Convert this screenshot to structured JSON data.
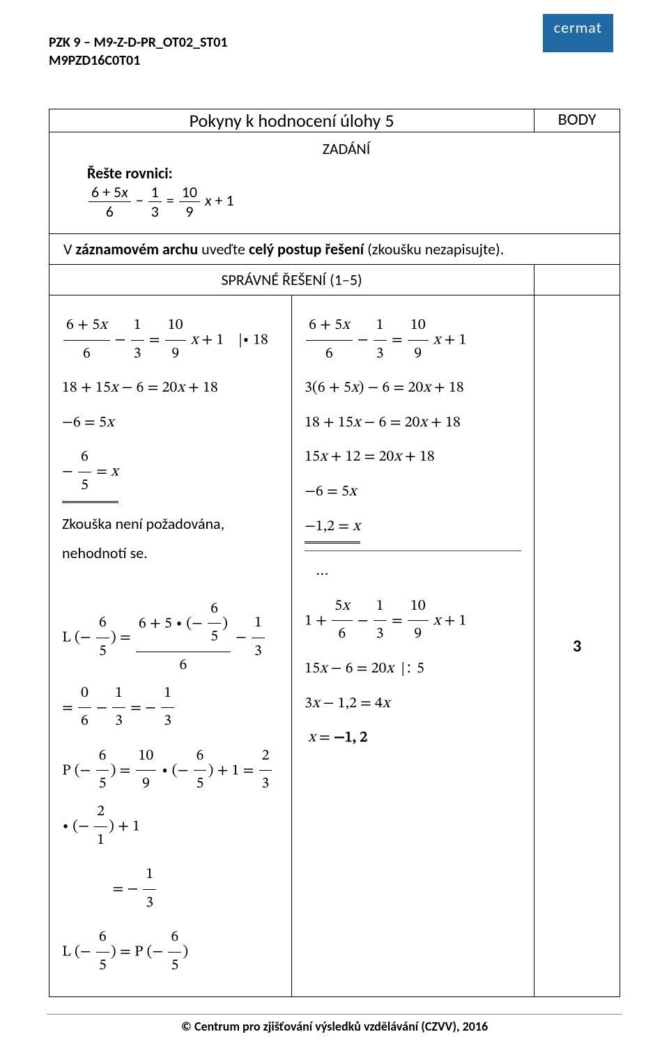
{
  "brand": "cermat",
  "header": {
    "line1": "PZK 9 – M9-Z-D-PR_OT02_ST01",
    "line2": "M9PZD16C0T01"
  },
  "table": {
    "title": "Pokyny k hodnocení úlohy 5",
    "body_label": "BODY",
    "zadani_label": "ZADÁNÍ",
    "reste_label": "Řešte rovnici:",
    "equation_html": "<span class='frac'><span class='num'>6 + 5<span class='math-it'>x</span></span><span class='den'>6</span></span> − <span class='frac'><span class='num'>1</span><span class='den'>3</span></span> = <span class='frac'><span class='num'>10</span><span class='den'>9</span></span> <span class='math-it'>x</span> + 1",
    "note": "V <b>záznamovém archu</b> uveďte <b>celý postup řešení</b> (zkoušku nezapisujte).",
    "spravne_label": "SPRÁVNÉ ŘEŠENÍ (1–5)",
    "points": "3",
    "left_col": [
      "<span class='frac'><span class='num'>6 + 5<span class='math-it'>x</span></span><span class='den'>6</span></span> − <span class='frac'><span class='num'>1</span><span class='den'>3</span></span> = <span class='frac'><span class='num'>10</span><span class='den'>9</span></span> <span class='math-it'>x</span> + 1&nbsp;&nbsp;&nbsp;&nbsp;|∙ 18",
      "18 + 15<span class='math-it'>x</span> − 6 = 20<span class='math-it'>x</span> + 18",
      "−6 = 5<span class='math-it'>x</span>",
      "<span class='dunder'>− <span class='frac'><span class='num'>6</span><span class='den'>5</span></span> = <span class='math-it'>x</span></span>",
      "<span class='zk-note'>Zkouška není požadována, nehodnotí se.</span>",
      "L (− <span class='frac'><span class='num'>6</span><span class='den'>5</span></span>) = <span class='frac'><span class='num'>6 + 5 ∙ (− <span class='frac'><span class='num'>6</span><span class='den'>5</span></span>)</span><span class='den'>6</span></span> − <span class='frac'><span class='num'>1</span><span class='den'>3</span></span> = <span class='frac'><span class='num'>0</span><span class='den'>6</span></span> − <span class='frac'><span class='num'>1</span><span class='den'>3</span></span> = − <span class='frac'><span class='num'>1</span><span class='den'>3</span></span>",
      "P (− <span class='frac'><span class='num'>6</span><span class='den'>5</span></span>) = <span class='frac'><span class='num'>10</span><span class='den'>9</span></span> ∙ (− <span class='frac'><span class='num'>6</span><span class='den'>5</span></span>) + 1 = <span class='frac'><span class='num'>2</span><span class='den'>3</span></span> ∙ (− <span class='frac'><span class='num'>2</span><span class='den'>1</span></span>) + 1",
      "&nbsp;&nbsp;&nbsp;&nbsp;&nbsp;&nbsp;&nbsp;&nbsp;&nbsp;&nbsp;&nbsp;&nbsp;&nbsp;&nbsp;= − <span class='frac'><span class='num'>1</span><span class='den'>3</span></span>",
      "L (− <span class='frac'><span class='num'>6</span><span class='den'>5</span></span>) = P (− <span class='frac'><span class='num'>6</span><span class='den'>5</span></span>)"
    ],
    "right_top": [
      "<span class='frac'><span class='num'>6 + 5<span class='math-it'>x</span></span><span class='den'>6</span></span> − <span class='frac'><span class='num'>1</span><span class='den'>3</span></span> = <span class='frac'><span class='num'>10</span><span class='den'>9</span></span> <span class='math-it'>x</span> + 1",
      "3(6 + 5<span class='math-it'>x</span>) − 6 = 20<span class='math-it'>x</span> + 18",
      "18 + 15<span class='math-it'>x</span> − 6 = 20<span class='math-it'>x</span> + 18",
      "15<span class='math-it'>x</span> + 12 = 20<span class='math-it'>x</span> + 18",
      "−6 = 5<span class='math-it'>x</span>",
      "<span class='dunder'>−1,2 = <span class='math-it'>x</span></span>"
    ],
    "right_bottom": [
      "&nbsp;&nbsp;&nbsp;…",
      "1 + <span class='frac'><span class='num'>5<span class='math-it'>x</span></span><span class='den'>6</span></span> − <span class='frac'><span class='num'>1</span><span class='den'>3</span></span> = <span class='frac'><span class='num'>10</span><span class='den'>9</span></span> <span class='math-it'>x</span> + 1",
      "15<span class='math-it'>x</span> − 6 = 20<span class='math-it'>x</span>&nbsp;&nbsp;|∶ 5",
      "3<span class='math-it'>x</span> − 1,2 = 4<span class='math-it'>x</span>",
      "&nbsp;<span class='math-it'>x</span> = <b>−1, 2</b>"
    ]
  },
  "footer": "© Centrum pro zjišťování výsledků vzdělávání (CZVV), 2016",
  "colors": {
    "brand_bg": "#1f6aa5",
    "brand_fg": "#ffffff",
    "text": "#000000",
    "divider": "#888888"
  },
  "fonts": {
    "body": "Calibri",
    "math": "Cambria Math",
    "title_size_pt": 20,
    "body_size_pt": 16,
    "header_weight": "bold"
  }
}
